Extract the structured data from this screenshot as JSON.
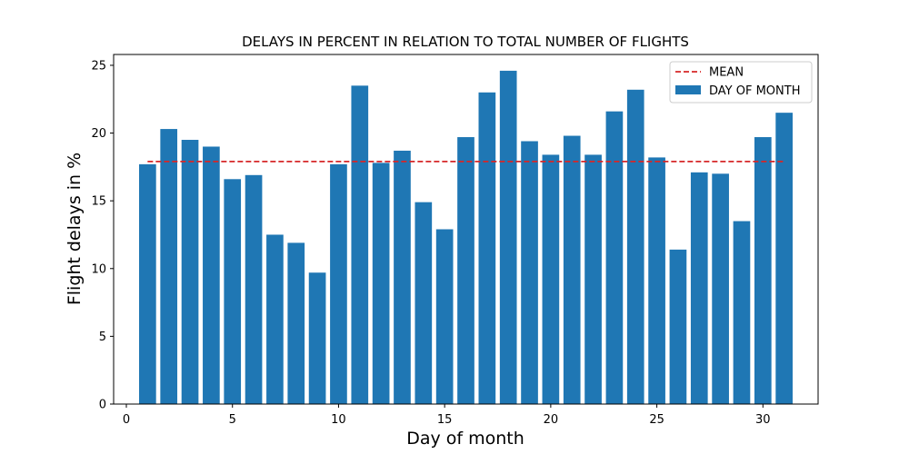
{
  "chart_data": {
    "type": "bar",
    "title": "DELAYS IN PERCENT IN RELATION TO TOTAL NUMBER OF FLIGHTS",
    "xlabel": "Day of month",
    "ylabel": "Flight delays in %",
    "x": [
      1,
      2,
      3,
      4,
      5,
      6,
      7,
      8,
      9,
      10,
      11,
      12,
      13,
      14,
      15,
      16,
      17,
      18,
      19,
      20,
      21,
      22,
      23,
      24,
      25,
      26,
      27,
      28,
      29,
      30,
      31
    ],
    "series": [
      {
        "name": "DAY OF MONTH",
        "values": [
          17.7,
          20.3,
          19.5,
          19.0,
          16.6,
          16.9,
          12.5,
          11.9,
          9.7,
          17.7,
          23.5,
          17.8,
          18.7,
          14.9,
          12.9,
          19.7,
          23.0,
          24.6,
          19.4,
          18.4,
          19.8,
          18.4,
          21.6,
          23.2,
          18.2,
          11.4,
          17.1,
          17.0,
          13.5,
          19.7,
          21.5
        ],
        "color": "#1f77b4"
      }
    ],
    "mean": {
      "name": "MEAN",
      "value": 17.9,
      "x_range": [
        1,
        31
      ],
      "color": "#d62728",
      "style": "dashed"
    },
    "xlim": [
      -0.6,
      32.6
    ],
    "ylim": [
      0,
      25.8
    ],
    "xticks": [
      0,
      5,
      10,
      15,
      20,
      25,
      30
    ],
    "yticks": [
      0,
      5,
      10,
      15,
      20,
      25
    ],
    "legend": {
      "placement": "top-right",
      "entries": [
        "MEAN",
        "DAY OF MONTH"
      ]
    },
    "grid": false
  }
}
